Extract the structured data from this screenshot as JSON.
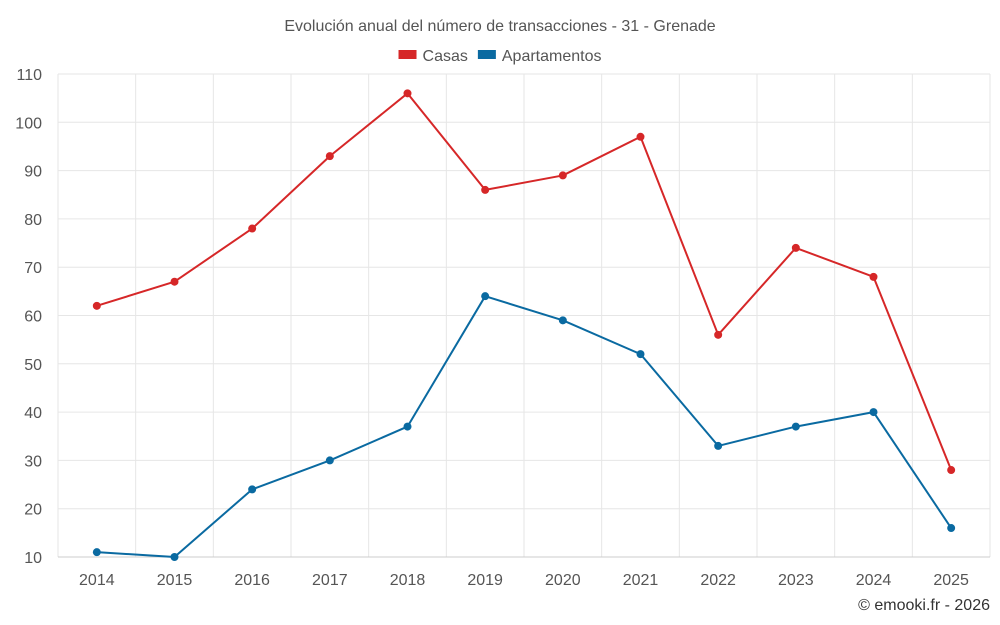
{
  "chart_data": {
    "type": "line",
    "title": "Evolución anual del número de transacciones - 31 - Grenade",
    "xlabel": "",
    "ylabel": "",
    "categories": [
      "2014",
      "2015",
      "2016",
      "2017",
      "2018",
      "2019",
      "2020",
      "2021",
      "2022",
      "2023",
      "2024",
      "2025"
    ],
    "ylim": [
      10,
      110
    ],
    "yticks": [
      10,
      20,
      30,
      40,
      50,
      60,
      70,
      80,
      90,
      100,
      110
    ],
    "grid": true,
    "legend_position": "top-center",
    "series": [
      {
        "name": "Casas",
        "color": "#d62728",
        "values": [
          62,
          67,
          78,
          93,
          106,
          86,
          89,
          97,
          56,
          74,
          68,
          28
        ]
      },
      {
        "name": "Apartamentos",
        "color": "#0a6aa1",
        "values": [
          11,
          10,
          24,
          30,
          37,
          64,
          59,
          52,
          33,
          37,
          40,
          16
        ]
      }
    ],
    "credit": "© emooki.fr - 2026"
  }
}
